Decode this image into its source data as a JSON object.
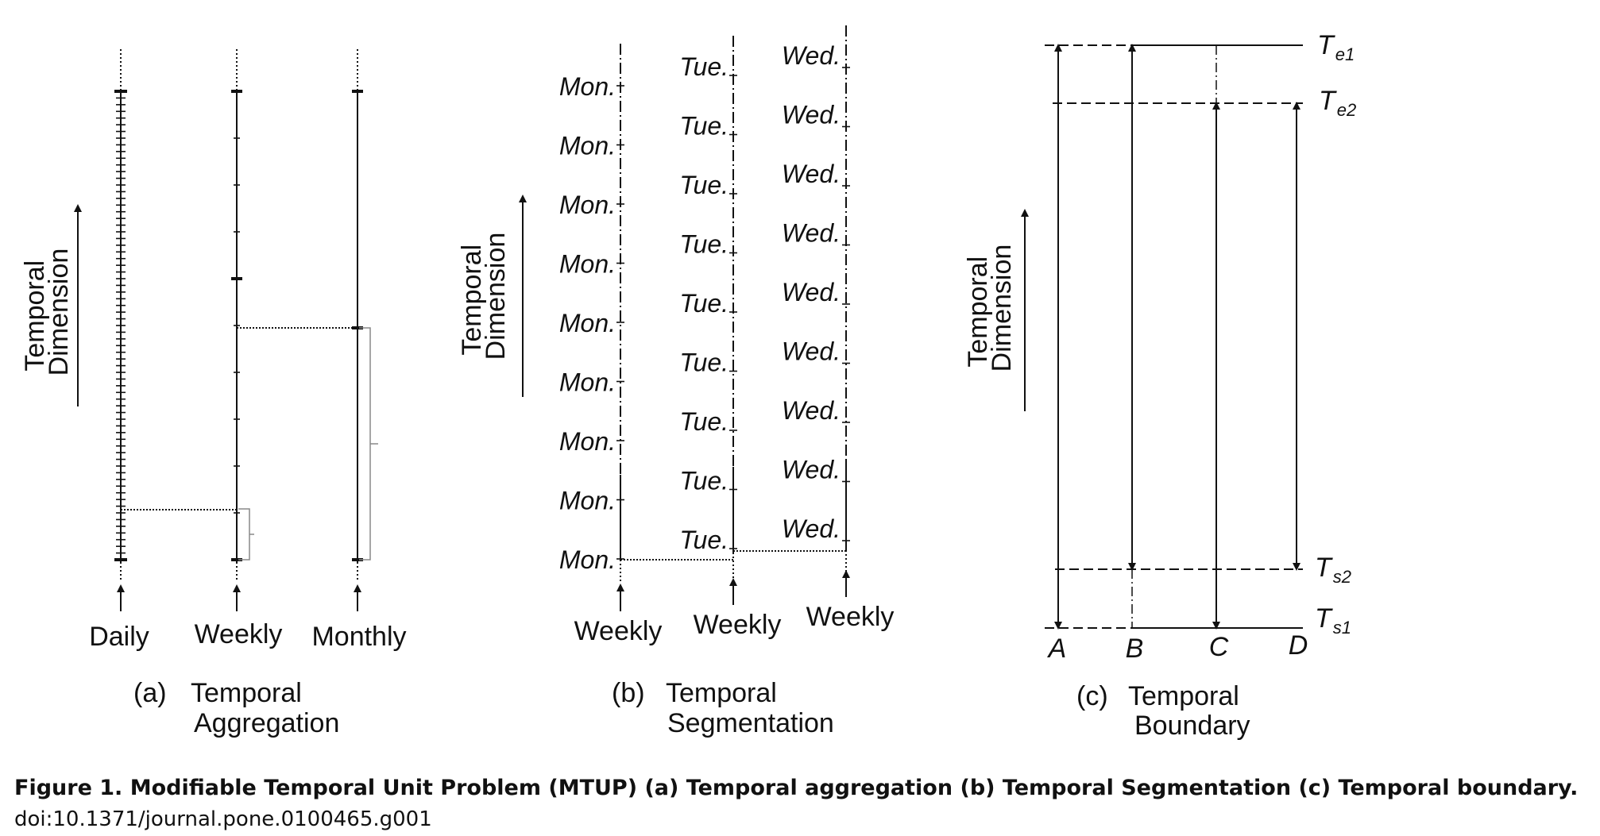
{
  "panel_a": {
    "axis_label": [
      "Temporal",
      "Dimension"
    ],
    "columns": [
      "Daily",
      "Weekly",
      "Monthly"
    ],
    "letter": "(a)",
    "caption": [
      "Temporal",
      "Aggregation"
    ]
  },
  "panel_b": {
    "axis_label": [
      "Temporal",
      "Dimension"
    ],
    "columns": [
      "Weekly",
      "Weekly",
      "Weekly"
    ],
    "days": [
      "Mon.",
      "Tue.",
      "Wed."
    ],
    "letter": "(b)",
    "caption": [
      "Temporal",
      "Segmentation"
    ]
  },
  "panel_c": {
    "axis_label": [
      "Temporal",
      "Dimension"
    ],
    "lines": [
      "A",
      "B",
      "C",
      "D"
    ],
    "boundaries": [
      {
        "sym": "T",
        "sub": "e1"
      },
      {
        "sym": "T",
        "sub": "e2"
      },
      {
        "sym": "T",
        "sub": "s2"
      },
      {
        "sym": "T",
        "sub": "s1"
      }
    ],
    "letter": "(c)",
    "caption": [
      "Temporal",
      "Boundary"
    ]
  },
  "figure_caption": "Figure 1. Modifiable Temporal Unit Problem (MTUP) (a) Temporal aggregation (b) Temporal Segmentation (c) Temporal boundary.",
  "doi": "doi:10.1371/journal.pone.0100465.g001"
}
